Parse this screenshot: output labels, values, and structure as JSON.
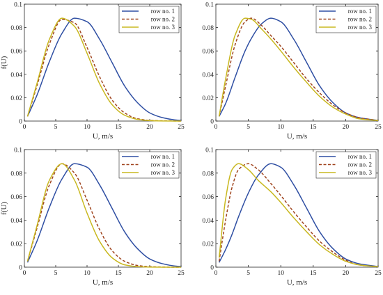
{
  "figure": {
    "colors": {
      "row1": "#2f4fa3",
      "row2": "#a0451f",
      "row3": "#c9b820",
      "axis": "#262626"
    },
    "line_styles": {
      "row1": "solid",
      "row2": "dashed",
      "row3": "solid"
    }
  },
  "chart_data": [
    {
      "type": "line",
      "position": "top-left",
      "xlabel": "U, m/s",
      "ylabel": "f(U)",
      "xlim": [
        0,
        25
      ],
      "ylim": [
        0,
        0.1
      ],
      "xticks": [
        0,
        5,
        10,
        15,
        20,
        25
      ],
      "yticks": [
        0,
        0.02,
        0.04,
        0.06,
        0.08,
        0.1
      ],
      "ytick_labels": [
        "0",
        "0.02",
        "0.04",
        "0.06",
        "0.08",
        "0.1"
      ],
      "grid": false,
      "legend": "top-right",
      "x": [
        0.5,
        2,
        4,
        6,
        8,
        10,
        12,
        14,
        16,
        18,
        20,
        22,
        24,
        25
      ],
      "series": [
        {
          "name": "row no. 1",
          "values": [
            0.004,
            0.022,
            0.051,
            0.075,
            0.088,
            0.085,
            0.07,
            0.05,
            0.03,
            0.016,
            0.007,
            0.003,
            0.001,
            0.0005
          ]
        },
        {
          "name": "row no. 2",
          "values": [
            0.004,
            0.03,
            0.066,
            0.087,
            0.084,
            0.063,
            0.038,
            0.018,
            0.007,
            0.002,
            0.0006,
            0.0002,
            0.0001,
            0.0
          ]
        },
        {
          "name": "row no. 3",
          "values": [
            0.004,
            0.032,
            0.07,
            0.088,
            0.081,
            0.058,
            0.032,
            0.014,
            0.005,
            0.0015,
            0.0004,
            0.0001,
            0.0,
            0.0
          ]
        }
      ]
    },
    {
      "type": "line",
      "position": "top-right",
      "xlabel": "U, m/s",
      "ylabel": "",
      "xlim": [
        0,
        25
      ],
      "ylim": [
        0,
        0.1
      ],
      "xticks": [
        0,
        5,
        10,
        15,
        20,
        25
      ],
      "yticks": [
        0,
        0.02,
        0.04,
        0.06,
        0.08,
        0.1
      ],
      "ytick_labels": [
        "0",
        "0.02",
        "0.04",
        "0.06",
        "0.08",
        "0.1"
      ],
      "grid": false,
      "legend": "top-right",
      "x": [
        0.5,
        1.5,
        3,
        4.5,
        5.5,
        7,
        8.5,
        10,
        12,
        14,
        16,
        18,
        20,
        22,
        25
      ],
      "series": [
        {
          "name": "row no. 1",
          "values": [
            0.004,
            0.015,
            0.038,
            0.06,
            0.071,
            0.083,
            0.088,
            0.085,
            0.07,
            0.05,
            0.03,
            0.016,
            0.007,
            0.003,
            0.0005
          ]
        },
        {
          "name": "row no. 2",
          "values": [
            0.004,
            0.03,
            0.066,
            0.085,
            0.088,
            0.082,
            0.073,
            0.064,
            0.05,
            0.036,
            0.024,
            0.014,
            0.007,
            0.003,
            0.0005
          ]
        },
        {
          "name": "row no. 3",
          "values": [
            0.004,
            0.036,
            0.074,
            0.088,
            0.087,
            0.079,
            0.07,
            0.06,
            0.046,
            0.033,
            0.021,
            0.012,
            0.006,
            0.002,
            0.0004
          ]
        }
      ]
    },
    {
      "type": "line",
      "position": "bottom-left",
      "xlabel": "U, m/s",
      "ylabel": "f(U)",
      "xlim": [
        0,
        25
      ],
      "ylim": [
        0,
        0.1
      ],
      "xticks": [
        0,
        5,
        10,
        15,
        20,
        25
      ],
      "yticks": [
        0,
        0.02,
        0.04,
        0.06,
        0.08,
        0.1
      ],
      "ytick_labels": [
        "0",
        "0.02",
        "0.04",
        "0.06",
        "0.08",
        "0.1"
      ],
      "grid": false,
      "legend": "top-right",
      "x": [
        0.5,
        2,
        4,
        6,
        8,
        10,
        12,
        14,
        16,
        18,
        20,
        22,
        24,
        25
      ],
      "series": [
        {
          "name": "row no. 1",
          "values": [
            0.004,
            0.022,
            0.051,
            0.075,
            0.088,
            0.085,
            0.07,
            0.05,
            0.03,
            0.016,
            0.007,
            0.003,
            0.001,
            0.0005
          ]
        },
        {
          "name": "row no. 2",
          "values": [
            0.005,
            0.033,
            0.07,
            0.088,
            0.08,
            0.057,
            0.032,
            0.014,
            0.005,
            0.0015,
            0.0004,
            0.0001,
            0.0,
            0.0
          ]
        },
        {
          "name": "row no. 3",
          "values": [
            0.005,
            0.035,
            0.074,
            0.088,
            0.074,
            0.046,
            0.022,
            0.008,
            0.002,
            0.0005,
            0.0001,
            0.0,
            0.0,
            0.0
          ]
        }
      ]
    },
    {
      "type": "line",
      "position": "bottom-right",
      "xlabel": "U, m/s",
      "ylabel": "",
      "xlim": [
        0,
        25
      ],
      "ylim": [
        0,
        0.1
      ],
      "xticks": [
        0,
        5,
        10,
        15,
        20,
        25
      ],
      "yticks": [
        0,
        0.02,
        0.04,
        0.06,
        0.08,
        0.1
      ],
      "ytick_labels": [
        "0",
        "0.02",
        "0.04",
        "0.06",
        "0.08",
        "0.1"
      ],
      "grid": false,
      "legend": "top-right",
      "x": [
        0.5,
        1.5,
        2.5,
        3.5,
        5,
        6.5,
        8.5,
        10,
        12,
        14,
        16,
        18,
        20,
        22,
        25
      ],
      "series": [
        {
          "name": "row no. 1",
          "values": [
            0.004,
            0.015,
            0.028,
            0.043,
            0.063,
            0.078,
            0.088,
            0.085,
            0.07,
            0.05,
            0.03,
            0.016,
            0.007,
            0.003,
            0.0005
          ]
        },
        {
          "name": "row no. 2",
          "values": [
            0.005,
            0.04,
            0.068,
            0.083,
            0.088,
            0.083,
            0.071,
            0.061,
            0.047,
            0.034,
            0.022,
            0.013,
            0.006,
            0.002,
            0.0004
          ]
        },
        {
          "name": "row no. 3",
          "values": [
            0.008,
            0.058,
            0.083,
            0.088,
            0.083,
            0.074,
            0.064,
            0.055,
            0.042,
            0.03,
            0.019,
            0.011,
            0.005,
            0.002,
            0.0003
          ]
        }
      ]
    }
  ]
}
